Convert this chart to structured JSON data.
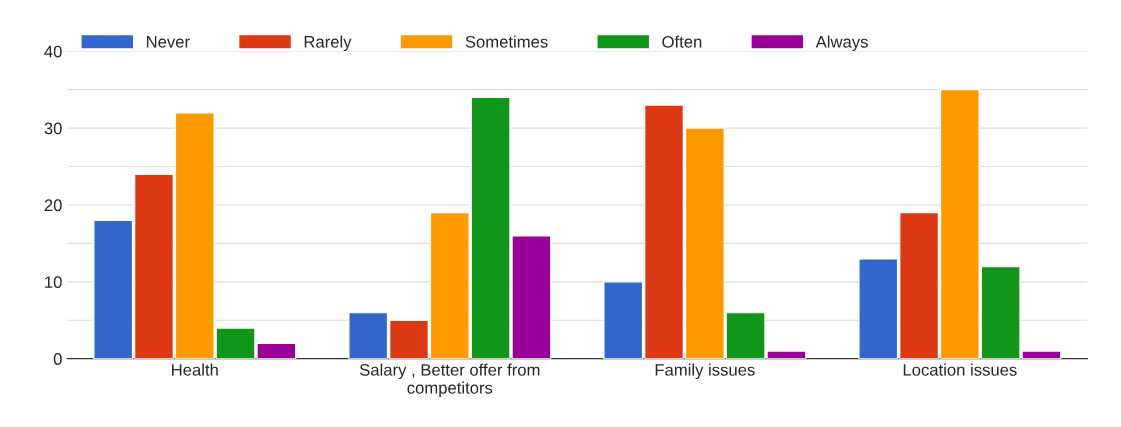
{
  "chart_data": {
    "type": "bar",
    "categories": [
      "Health",
      "Salary , Better offer from\ncompetitors",
      "Family issues",
      "Location issues"
    ],
    "series": [
      {
        "name": "Never",
        "color": "#3366cc",
        "values": [
          18,
          6,
          10,
          13
        ]
      },
      {
        "name": "Rarely",
        "color": "#dc3912",
        "values": [
          24,
          5,
          33,
          19
        ]
      },
      {
        "name": "Sometimes",
        "color": "#ff9900",
        "values": [
          32,
          19,
          30,
          35
        ]
      },
      {
        "name": "Often",
        "color": "#109618",
        "values": [
          4,
          34,
          6,
          12
        ]
      },
      {
        "name": "Always",
        "color": "#990099",
        "values": [
          2,
          16,
          1,
          1
        ]
      }
    ],
    "ylim": [
      0,
      40
    ],
    "yticks": [
      0,
      {
        "value": 5,
        "label": null
      },
      10,
      {
        "value": 15,
        "label": null
      },
      20,
      {
        "value": 25,
        "label": null
      },
      30,
      {
        "value": 35,
        "label": null
      },
      40
    ],
    "grid": "y",
    "legend": "top left"
  }
}
